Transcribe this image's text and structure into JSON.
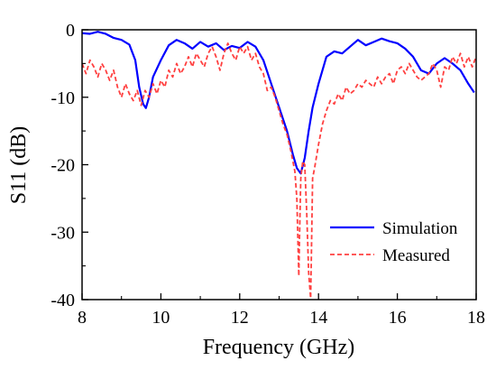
{
  "chart_data": {
    "type": "line",
    "xlabel": "Frequency (GHz)",
    "ylabel": "S11 (dB)",
    "xlim": [
      8,
      18
    ],
    "ylim": [
      -40,
      0
    ],
    "xticks": [
      8,
      10,
      12,
      14,
      16,
      18
    ],
    "yticks": [
      -40,
      -30,
      -20,
      -10,
      0
    ],
    "grid": false,
    "legend_position": "lower-right",
    "series": [
      {
        "name": "Simulation",
        "color": "#0000ff",
        "line_style": "solid",
        "x": [
          8.0,
          8.2,
          8.4,
          8.6,
          8.8,
          9.0,
          9.2,
          9.35,
          9.45,
          9.55,
          9.62,
          9.7,
          9.8,
          10.0,
          10.2,
          10.4,
          10.6,
          10.8,
          11.0,
          11.2,
          11.4,
          11.6,
          11.8,
          12.0,
          12.2,
          12.4,
          12.6,
          12.8,
          13.0,
          13.2,
          13.35,
          13.45,
          13.55,
          13.65,
          13.75,
          13.85,
          14.0,
          14.2,
          14.4,
          14.6,
          14.8,
          15.0,
          15.2,
          15.4,
          15.6,
          15.8,
          16.0,
          16.2,
          16.4,
          16.6,
          16.8,
          17.0,
          17.2,
          17.4,
          17.6,
          17.8,
          17.95
        ],
        "y": [
          -0.5,
          -0.6,
          -0.3,
          -0.6,
          -1.2,
          -1.5,
          -2.2,
          -4.5,
          -8.5,
          -11.0,
          -11.6,
          -10.0,
          -7.0,
          -4.5,
          -2.3,
          -1.5,
          -2.0,
          -2.8,
          -1.8,
          -2.5,
          -2.0,
          -3.0,
          -2.4,
          -2.7,
          -1.8,
          -2.5,
          -4.5,
          -8.0,
          -11.5,
          -15.0,
          -18.5,
          -20.5,
          -21.3,
          -19.0,
          -15.0,
          -11.5,
          -8.0,
          -4.0,
          -3.2,
          -3.5,
          -2.5,
          -1.5,
          -2.3,
          -1.8,
          -1.3,
          -1.7,
          -2.0,
          -2.8,
          -4.0,
          -6.0,
          -6.5,
          -5.0,
          -4.2,
          -5.0,
          -6.0,
          -8.0,
          -9.3
        ]
      },
      {
        "name": "Measured",
        "color": "#ff4040",
        "line_style": "dashed",
        "x": [
          8.0,
          8.1,
          8.2,
          8.3,
          8.4,
          8.5,
          8.6,
          8.7,
          8.8,
          8.9,
          9.0,
          9.1,
          9.2,
          9.3,
          9.4,
          9.5,
          9.6,
          9.7,
          9.8,
          9.9,
          10.0,
          10.1,
          10.2,
          10.3,
          10.4,
          10.5,
          10.6,
          10.7,
          10.8,
          10.9,
          11.0,
          11.1,
          11.2,
          11.3,
          11.4,
          11.5,
          11.6,
          11.7,
          11.8,
          11.9,
          12.0,
          12.1,
          12.2,
          12.3,
          12.4,
          12.5,
          12.6,
          12.7,
          12.8,
          12.9,
          13.0,
          13.1,
          13.2,
          13.3,
          13.4,
          13.45,
          13.5,
          13.52,
          13.55,
          13.6,
          13.65,
          13.7,
          13.75,
          13.8,
          13.82,
          13.85,
          13.9,
          14.0,
          14.1,
          14.2,
          14.3,
          14.4,
          14.5,
          14.6,
          14.7,
          14.8,
          14.9,
          15.0,
          15.1,
          15.2,
          15.3,
          15.4,
          15.5,
          15.6,
          15.7,
          15.8,
          15.9,
          16.0,
          16.1,
          16.2,
          16.3,
          16.4,
          16.5,
          16.6,
          16.7,
          16.8,
          16.9,
          17.0,
          17.1,
          17.2,
          17.3,
          17.4,
          17.5,
          17.6,
          17.7,
          17.8,
          17.9,
          18.0
        ],
        "y": [
          -5.0,
          -6.5,
          -4.5,
          -5.5,
          -7.0,
          -5.0,
          -6.0,
          -7.5,
          -6.0,
          -8.5,
          -10.0,
          -8.0,
          -9.5,
          -10.5,
          -9.0,
          -11.2,
          -9.0,
          -10.0,
          -8.0,
          -9.5,
          -7.5,
          -8.5,
          -6.0,
          -7.0,
          -5.0,
          -6.5,
          -5.5,
          -4.0,
          -5.5,
          -3.5,
          -4.5,
          -5.5,
          -3.5,
          -2.5,
          -4.0,
          -6.0,
          -3.5,
          -2.0,
          -3.5,
          -4.5,
          -2.5,
          -3.5,
          -2.5,
          -4.5,
          -3.5,
          -5.5,
          -6.5,
          -9.0,
          -8.5,
          -10.0,
          -12.0,
          -14.0,
          -15.5,
          -18.0,
          -21.0,
          -25.0,
          -36.5,
          -30.0,
          -22.0,
          -19.5,
          -20.0,
          -27.0,
          -36.0,
          -39.8,
          -33.0,
          -22.0,
          -20.5,
          -17.0,
          -14.0,
          -12.0,
          -10.5,
          -11.0,
          -9.5,
          -10.5,
          -8.5,
          -9.5,
          -9.0,
          -8.0,
          -8.5,
          -7.5,
          -8.0,
          -8.5,
          -7.0,
          -8.0,
          -7.0,
          -6.5,
          -8.0,
          -6.0,
          -5.5,
          -6.5,
          -5.0,
          -6.0,
          -7.0,
          -7.5,
          -7.0,
          -6.5,
          -5.0,
          -6.0,
          -8.5,
          -5.5,
          -6.0,
          -4.0,
          -5.0,
          -3.5,
          -5.5,
          -4.0,
          -5.5,
          -4.0
        ]
      }
    ]
  }
}
